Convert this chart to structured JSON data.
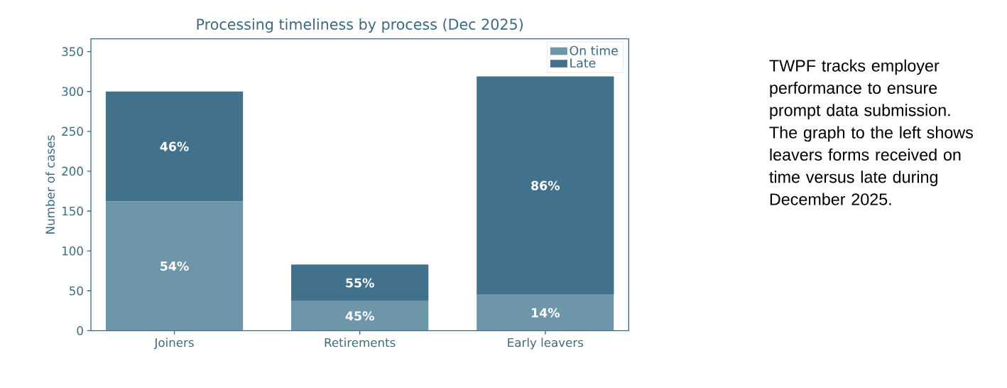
{
  "chart_data": {
    "type": "bar",
    "stacked": true,
    "title": "Processing timeliness by process (Dec 2025)",
    "ylabel": "Number of cases",
    "categories": [
      "Joiners",
      "Retirements",
      "Early leavers"
    ],
    "series": [
      {
        "name": "On time",
        "color": "#6d96a8",
        "values": [
          162,
          37,
          45
        ]
      },
      {
        "name": "Late",
        "color": "#41718b",
        "values": [
          138,
          46,
          274
        ]
      }
    ],
    "ylim": [
      0,
      366
    ],
    "yticks": [
      0,
      50,
      100,
      150,
      200,
      250,
      300,
      350
    ],
    "legend": "top right",
    "annotations": [
      "54%",
      "45%",
      "14%",
      "46%",
      "55%",
      "86%",
      "TWPF tracks employer performance to ensure prompt data submission. The graph to the left shows leavers forms received on time versus late during December 2025."
    ]
  }
}
